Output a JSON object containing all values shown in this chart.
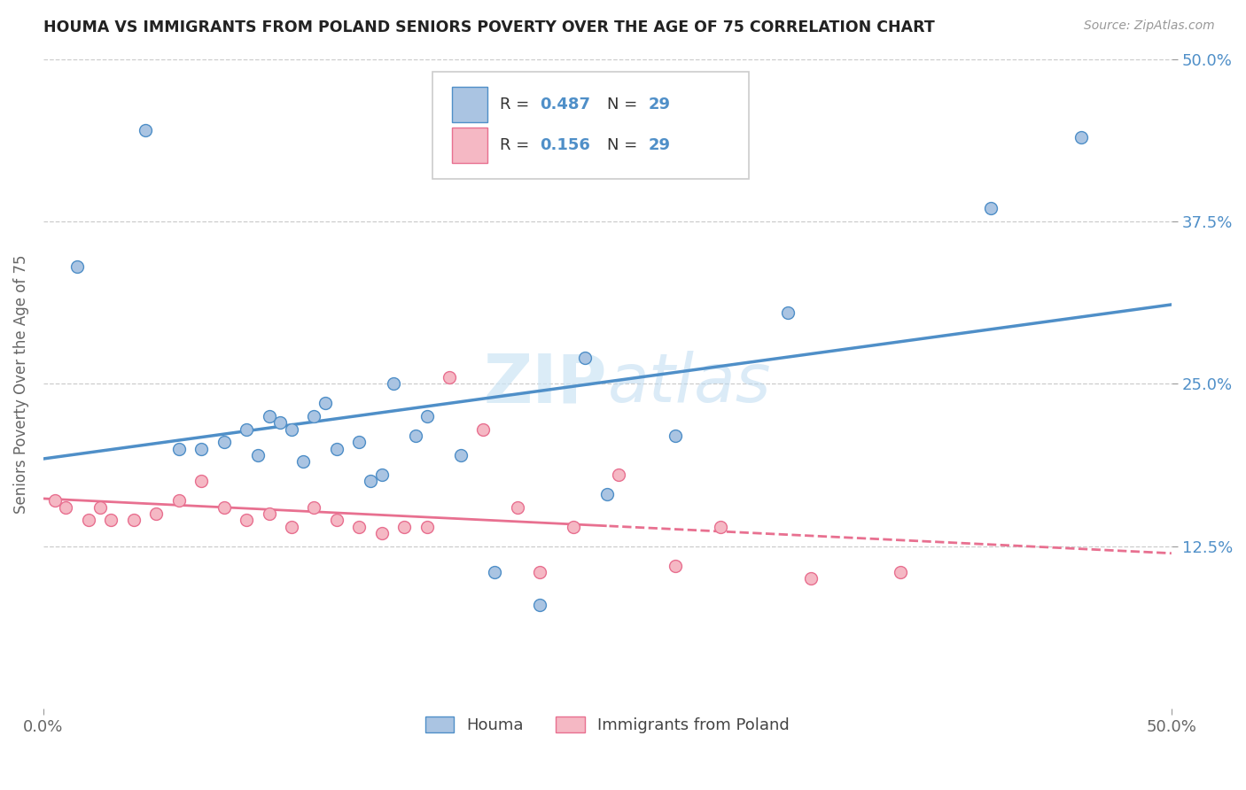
{
  "title": "HOUMA VS IMMIGRANTS FROM POLAND SENIORS POVERTY OVER THE AGE OF 75 CORRELATION CHART",
  "source_text": "Source: ZipAtlas.com",
  "ylabel": "Seniors Poverty Over the Age of 75",
  "xmin": 0.0,
  "xmax": 50.0,
  "ymin": 0.0,
  "ymax": 50.0,
  "yticks": [
    12.5,
    25.0,
    37.5,
    50.0
  ],
  "ytick_labels": [
    "12.5%",
    "25.0%",
    "37.5%",
    "50.0%"
  ],
  "houma_color": "#aac4e2",
  "poland_color": "#f5b8c4",
  "houma_line_color": "#4f8fc8",
  "poland_line_color": "#e87090",
  "legend_label_houma": "Houma",
  "legend_label_poland": "Immigrants from Poland",
  "watermark_zip": "ZIP",
  "watermark_atlas": "atlas",
  "houma_x": [
    1.5,
    4.5,
    6.0,
    7.0,
    8.0,
    9.0,
    9.5,
    10.0,
    10.5,
    11.0,
    11.5,
    12.0,
    12.5,
    13.0,
    14.0,
    14.5,
    15.0,
    15.5,
    16.5,
    17.0,
    18.5,
    20.0,
    22.0,
    24.0,
    25.0,
    28.0,
    33.0,
    42.0,
    46.0
  ],
  "houma_y": [
    34.0,
    44.5,
    20.0,
    20.0,
    20.5,
    21.5,
    19.5,
    22.5,
    22.0,
    21.5,
    19.0,
    22.5,
    23.5,
    20.0,
    20.5,
    17.5,
    18.0,
    25.0,
    21.0,
    22.5,
    19.5,
    10.5,
    8.0,
    27.0,
    16.5,
    21.0,
    30.5,
    38.5,
    44.0
  ],
  "poland_x": [
    0.5,
    1.0,
    2.0,
    2.5,
    3.0,
    4.0,
    5.0,
    6.0,
    7.0,
    8.0,
    9.0,
    10.0,
    11.0,
    12.0,
    13.0,
    14.0,
    15.0,
    16.0,
    17.0,
    18.0,
    19.5,
    21.0,
    22.0,
    23.5,
    25.5,
    28.0,
    30.0,
    34.0,
    38.0
  ],
  "poland_y": [
    16.0,
    15.5,
    14.5,
    15.5,
    14.5,
    14.5,
    15.0,
    16.0,
    17.5,
    15.5,
    14.5,
    15.0,
    14.0,
    15.5,
    14.5,
    14.0,
    13.5,
    14.0,
    14.0,
    25.5,
    21.5,
    15.5,
    10.5,
    14.0,
    18.0,
    11.0,
    14.0,
    10.0,
    10.5
  ]
}
